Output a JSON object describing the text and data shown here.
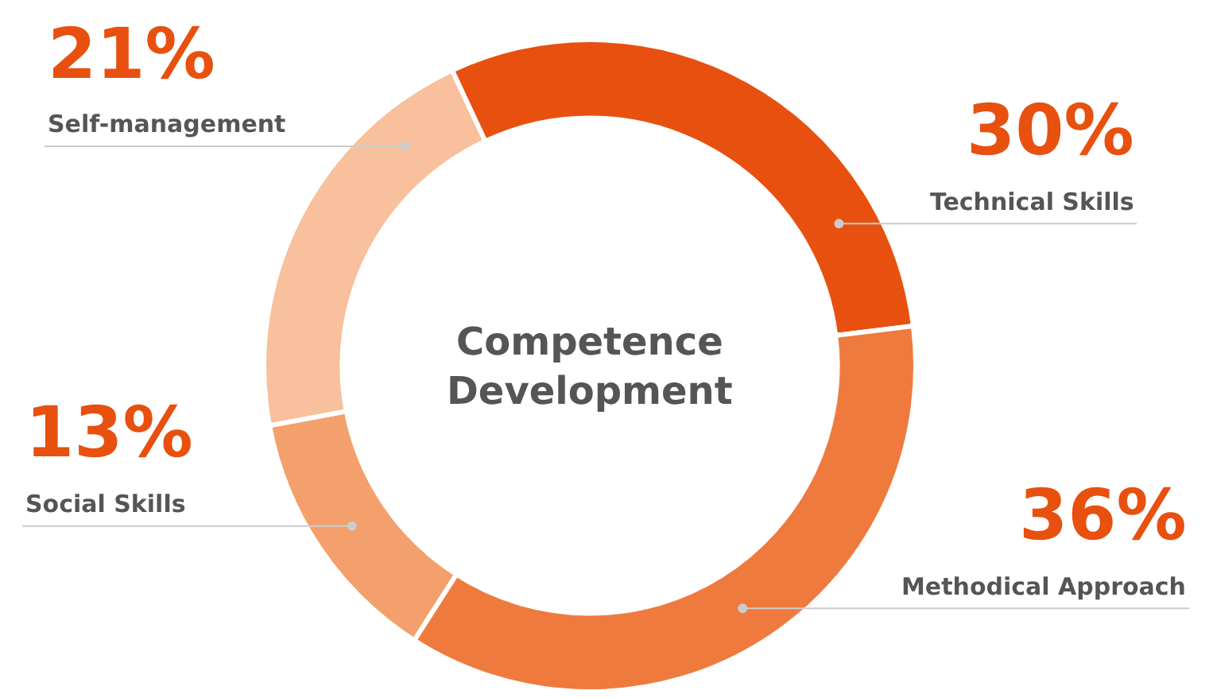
{
  "chart_data": {
    "type": "donut",
    "title": "Competence Development",
    "categories": [
      "Technical Skills",
      "Methodical Approach",
      "Social Skills",
      "Self-management"
    ],
    "values": [
      30,
      36,
      13,
      21
    ],
    "value_labels": [
      "30%",
      "36%",
      "13%",
      "21%"
    ],
    "colors": [
      "#e8500f",
      "#ef7a3e",
      "#f4a06c",
      "#f8c09c"
    ],
    "legend": false
  }
}
